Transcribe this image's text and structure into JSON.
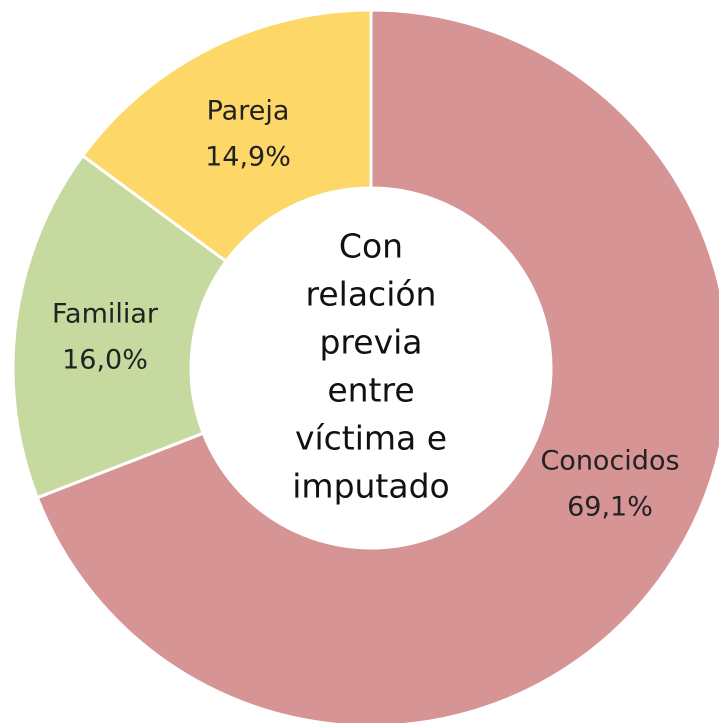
{
  "chart_data": {
    "type": "donut",
    "title": [
      "Con",
      "relación",
      "previa",
      "entre",
      "víctima e",
      "imputado"
    ],
    "categories": [
      "Conocidos",
      "Familiar",
      "Pareja"
    ],
    "values": [
      69.1,
      16.0,
      14.9
    ],
    "value_labels": [
      "69,1%",
      "16,0%",
      "14,9%"
    ],
    "colors": [
      "#d69494",
      "#c6d99e",
      "#fdd767"
    ]
  }
}
